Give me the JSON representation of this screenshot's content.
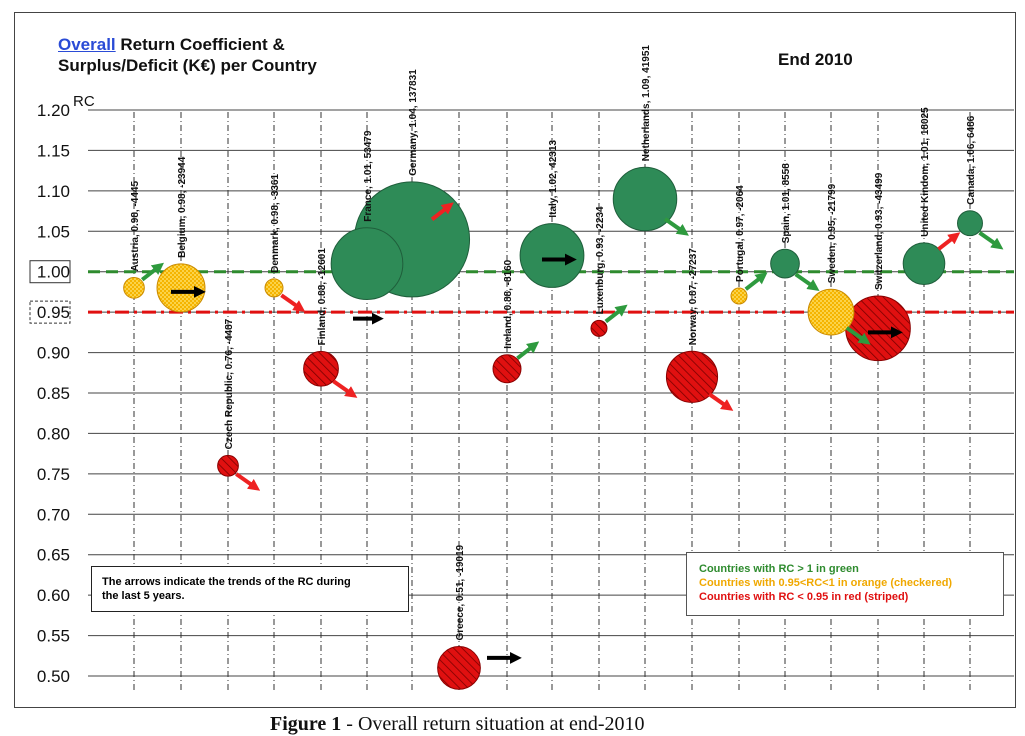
{
  "title": {
    "link_word": "Overall",
    "line1_rest": " Return Coefficient &",
    "line2": "Surplus/Deficit (K€) per Country"
  },
  "date_label": "End 2010",
  "y_axis_label": "RC",
  "note": {
    "line1": "The arrows indicate the trends of the RC during",
    "line2": "the last 5 years."
  },
  "legend": {
    "green": "Countries with RC > 1 in green",
    "orange": "Countries with 0.95<RC<1 in orange (checkered)",
    "red": "Countries with RC < 0.95 in red (striped)"
  },
  "caption": {
    "bold": "Figure 1",
    "rest": " - Overall return situation at end-2010"
  },
  "colors": {
    "green": "#2e8b57",
    "orange": "#f5b400",
    "red": "#e01010",
    "arrow_green": "#2e9a3e",
    "arrow_red": "#ee2222",
    "arrow_black": "#000000"
  },
  "chart_data": {
    "type": "scatter",
    "subtype": "bubble",
    "ylabel": "RC",
    "ylim": [
      0.5,
      1.2
    ],
    "yticks": [
      "1.20",
      "1.15",
      "1.10",
      "1.05",
      "1.00",
      "0.95",
      "0.90",
      "0.85",
      "0.80",
      "0.75",
      "0.70",
      "0.65",
      "0.60",
      "0.55",
      "0.50"
    ],
    "boxed_ticks": [
      "1.00",
      "0.95"
    ],
    "reference_lines": [
      {
        "y": 1.0,
        "color": "#2e8b2e",
        "style": "dashed"
      },
      {
        "y": 0.95,
        "color": "#e01010",
        "style": "dash-dot"
      }
    ],
    "points": [
      {
        "label": "Austria, 0.98, -4445",
        "country": "Austria",
        "rc": 0.98,
        "balance": -4445,
        "category": "orange",
        "trend": "up"
      },
      {
        "label": "Belgium, 0.98, -23944",
        "country": "Belgium",
        "rc": 0.98,
        "balance": -23944,
        "category": "orange",
        "trend": "flat"
      },
      {
        "label": "Czech Republic, 0.76, -4487",
        "country": "Czech Republic",
        "rc": 0.76,
        "balance": -4487,
        "category": "red",
        "trend": "down"
      },
      {
        "label": "Denmark, 0.98, -3361",
        "country": "Denmark",
        "rc": 0.98,
        "balance": -3361,
        "category": "orange",
        "trend": "down"
      },
      {
        "label": "Finland, 0.88, -12601",
        "country": "Finland",
        "rc": 0.88,
        "balance": -12601,
        "category": "red",
        "trend": "down"
      },
      {
        "label": "France, 1.01, 53479",
        "country": "France",
        "rc": 1.01,
        "balance": 53479,
        "category": "green",
        "trend": "flat"
      },
      {
        "label": "Germany, 1.04, 137831",
        "country": "Germany",
        "rc": 1.04,
        "balance": 137831,
        "category": "green",
        "trend": "up"
      },
      {
        "label": "Greece, 0.51, -19019",
        "country": "Greece",
        "rc": 0.51,
        "balance": -19019,
        "category": "red",
        "trend": "flat"
      },
      {
        "label": "Ireland, 0.88, -8160",
        "country": "Ireland",
        "rc": 0.88,
        "balance": -8160,
        "category": "red",
        "trend": "up"
      },
      {
        "label": "Italy, 1.02, 42313",
        "country": "Italy",
        "rc": 1.02,
        "balance": 42313,
        "category": "green",
        "trend": "flat"
      },
      {
        "label": "Luxenburg, 0.93, -2234",
        "country": "Luxenburg",
        "rc": 0.93,
        "balance": -2234,
        "category": "red",
        "trend": "up"
      },
      {
        "label": "Netherlands, 1.09, 41951",
        "country": "Netherlands",
        "rc": 1.09,
        "balance": 41951,
        "category": "green",
        "trend": "down"
      },
      {
        "label": "Norway, 0.87, -27237",
        "country": "Norway",
        "rc": 0.87,
        "balance": -27237,
        "category": "red",
        "trend": "down"
      },
      {
        "label": "Portugal, 0.97, -2064",
        "country": "Portugal",
        "rc": 0.97,
        "balance": -2064,
        "category": "orange",
        "trend": "up"
      },
      {
        "label": "Spain, 1.01, 8558",
        "country": "Spain",
        "rc": 1.01,
        "balance": 8558,
        "category": "green",
        "trend": "down"
      },
      {
        "label": "Sweden, 0.95, -21799",
        "country": "Sweden",
        "rc": 0.95,
        "balance": -21799,
        "category": "orange",
        "trend": "down"
      },
      {
        "label": "Switzerland, 0.93, -43499",
        "country": "Switzerland",
        "rc": 0.93,
        "balance": -43499,
        "category": "red",
        "trend": "flat"
      },
      {
        "label": "United Kindom, 1.01, 18025",
        "country": "United Kindom",
        "rc": 1.01,
        "balance": 18025,
        "category": "green",
        "trend": "up"
      },
      {
        "label": "Canada, 1.06, 6486",
        "country": "Canada",
        "rc": 1.06,
        "balance": 6486,
        "category": "green",
        "trend": "down"
      }
    ]
  }
}
